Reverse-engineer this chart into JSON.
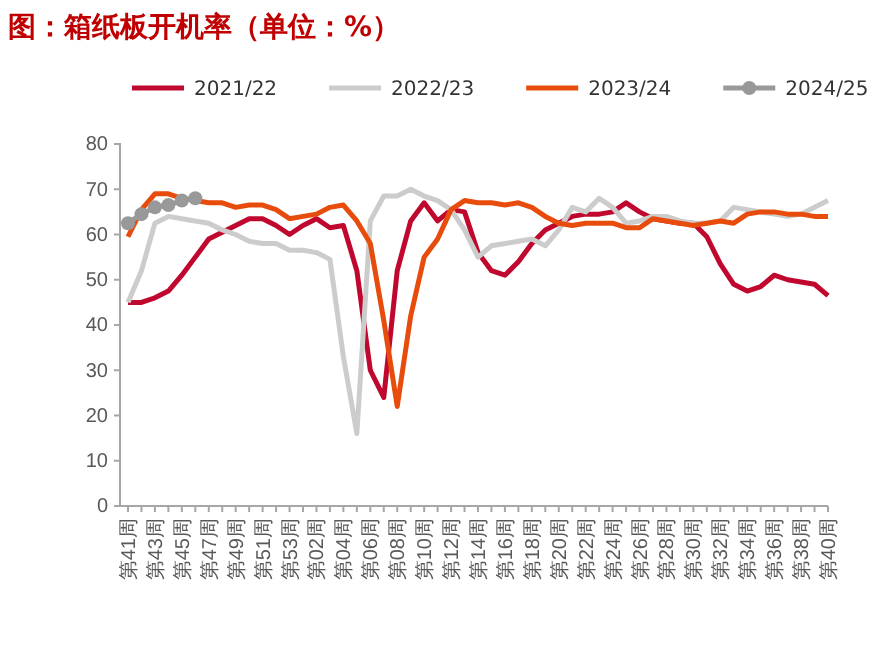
{
  "chart_data": {
    "type": "line",
    "title": "图：箱纸板开机率（单位：%）",
    "categories": [
      "第41周",
      null,
      "第43周",
      null,
      "第45周",
      null,
      "第47周",
      null,
      "第49周",
      null,
      "第51周",
      null,
      "第53周",
      null,
      "第02周",
      null,
      "第04周",
      null,
      "第06周",
      null,
      "第08周",
      null,
      "第10周",
      null,
      "第12周",
      null,
      "第14周",
      null,
      "第16周",
      null,
      "第18周",
      null,
      "第20周",
      null,
      "第22周",
      null,
      "第24周",
      null,
      "第26周",
      null,
      "第28周",
      null,
      "第30周",
      null,
      "第32周",
      null,
      "第34周",
      null,
      "第36周",
      null,
      "第38周",
      null,
      "第40周"
    ],
    "ylim": [
      0,
      80
    ],
    "yticks": [
      0,
      10,
      20,
      30,
      40,
      50,
      60,
      70,
      80
    ],
    "grid": false,
    "legend": "top",
    "series": [
      {
        "name": "2021/22",
        "color": "#c0082f",
        "marker": "none",
        "values": [
          45,
          45,
          46,
          47.5,
          51,
          55,
          59,
          60.5,
          62,
          63.5,
          63.5,
          62,
          60,
          62,
          63.5,
          61.5,
          62,
          52,
          30,
          24,
          52,
          63,
          67,
          63,
          65.5,
          65,
          56,
          52,
          51,
          54,
          58,
          61,
          62.5,
          64,
          64.5,
          64.5,
          65,
          67,
          65,
          63.5,
          63,
          62.5,
          62.5,
          59.5,
          53.5,
          49,
          47.5,
          48.5,
          51,
          50,
          49.5,
          49,
          46.5
        ]
      },
      {
        "name": "2022/23",
        "color": "#cccccc",
        "marker": "none",
        "values": [
          45,
          52,
          62.5,
          64,
          63.5,
          63,
          62.5,
          61,
          60,
          58.5,
          58,
          58,
          56.5,
          56.5,
          56,
          54.5,
          33,
          16,
          63,
          68.5,
          68.5,
          70,
          68.5,
          67.5,
          65.5,
          61,
          55,
          57.5,
          58,
          58.5,
          59,
          57.5,
          61,
          66,
          65,
          68,
          66,
          62.5,
          63,
          64,
          64,
          63,
          62.5,
          62.5,
          63,
          66,
          65.5,
          65,
          64.5,
          64,
          64.5,
          66,
          67.5
        ]
      },
      {
        "name": "2023/24",
        "color": "#e84c0c",
        "marker": "none",
        "values": [
          59.5,
          65.5,
          69,
          69,
          68,
          67.5,
          67,
          67,
          66,
          66.5,
          66.5,
          65.5,
          63.5,
          64,
          64.5,
          66,
          66.5,
          63,
          58,
          41,
          22,
          42,
          55,
          59,
          65.5,
          67.5,
          67,
          67,
          66.5,
          67,
          66,
          64,
          62.5,
          62,
          62.5,
          62.5,
          62.5,
          61.5,
          61.5,
          63.5,
          63,
          62.5,
          62,
          62.5,
          63,
          62.5,
          64.5,
          65,
          65,
          64.5,
          64.5,
          64,
          64
        ]
      },
      {
        "name": "2024/25",
        "color": "#999999",
        "marker": "circle",
        "values": [
          62.5,
          64.5,
          66,
          66.5,
          67.5,
          68,
          null,
          null,
          null,
          null,
          null,
          null,
          null,
          null,
          null,
          null,
          null,
          null,
          null,
          null,
          null,
          null,
          null,
          null,
          null,
          null,
          null,
          null,
          null,
          null,
          null,
          null,
          null,
          null,
          null,
          null,
          null,
          null,
          null,
          null,
          null,
          null,
          null,
          null,
          null,
          null,
          null,
          null,
          null,
          null,
          null,
          null,
          null
        ]
      }
    ]
  }
}
